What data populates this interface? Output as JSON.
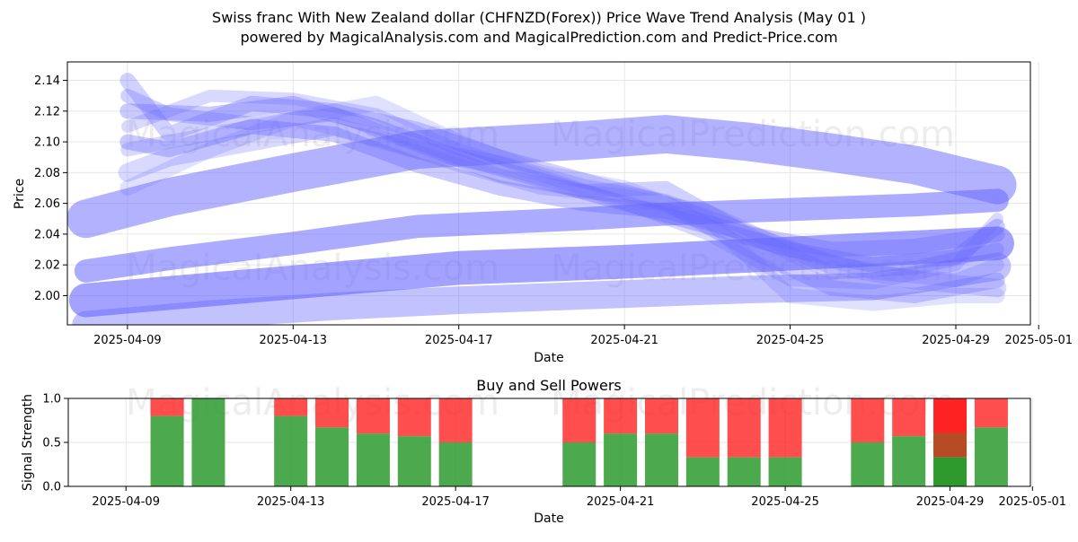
{
  "title_line1": "Swiss franc With New Zealand dollar (CHFNZD(Forex)) Price Wave Trend Analysis (May 01 )",
  "title_line2": "powered by MagicalAnalysis.com and MagicalPrediction.com and Predict-Price.com",
  "watermarks": [
    "MagicalAnalysis.com",
    "MagicalPrediction.com"
  ],
  "colors": {
    "wave": "#6666ff",
    "buy": "#2e9a2e",
    "sell": "#ff2222",
    "axis": "#000000",
    "grid": "#e6e6e6"
  },
  "chart_data": [
    {
      "type": "area",
      "title": "",
      "xlabel": "Date",
      "ylabel": "Price",
      "xlim": [
        "2025-04-08",
        "2025-05-01"
      ],
      "ylim": [
        1.981,
        2.152
      ],
      "x_ticks": [
        "2025-04-09",
        "2025-04-13",
        "2025-04-17",
        "2025-04-21",
        "2025-04-25",
        "2025-04-29",
        "2025-05-01"
      ],
      "y_ticks": [
        2.0,
        2.02,
        2.04,
        2.06,
        2.08,
        2.1,
        2.12,
        2.14
      ],
      "grid": true,
      "series": [
        {
          "dates": [
            "2025-04-08",
            "2025-04-10",
            "2025-04-13",
            "2025-04-16",
            "2025-04-20",
            "2025-04-22",
            "2025-04-24",
            "2025-04-26",
            "2025-04-28",
            "2025-04-30"
          ],
          "values": [
            2.05,
            2.064,
            2.08,
            2.095,
            2.101,
            2.105,
            2.1,
            2.093,
            2.085,
            2.072
          ],
          "width": 0.025,
          "opacity": 0.5
        },
        {
          "dates": [
            "2025-04-08",
            "2025-04-10",
            "2025-04-13",
            "2025-04-16",
            "2025-04-20",
            "2025-04-22",
            "2025-04-24",
            "2025-04-26",
            "2025-04-28",
            "2025-04-30"
          ],
          "values": [
            2.016,
            2.024,
            2.034,
            2.045,
            2.05,
            2.053,
            2.055,
            2.057,
            2.059,
            2.062
          ],
          "width": 0.015,
          "opacity": 0.55
        },
        {
          "dates": [
            "2025-04-08",
            "2025-04-11",
            "2025-04-14",
            "2025-04-17",
            "2025-04-21",
            "2025-04-24",
            "2025-04-27",
            "2025-04-30"
          ],
          "values": [
            1.997,
            2.004,
            2.011,
            2.018,
            2.022,
            2.026,
            2.03,
            2.034
          ],
          "width": 0.022,
          "opacity": 0.6
        },
        {
          "dates": [
            "2025-04-08",
            "2025-04-11",
            "2025-04-14",
            "2025-04-17",
            "2025-04-21",
            "2025-04-24",
            "2025-04-27",
            "2025-04-30"
          ],
          "values": [
            1.981,
            1.988,
            1.993,
            1.997,
            2.001,
            2.004,
            2.006,
            2.019
          ],
          "width": 0.018,
          "opacity": 0.4
        },
        {
          "dates": [
            "2025-04-09",
            "2025-04-10",
            "2025-04-12",
            "2025-04-14",
            "2025-04-16",
            "2025-04-18",
            "2025-04-20",
            "2025-04-22",
            "2025-04-24",
            "2025-04-26",
            "2025-04-28",
            "2025-04-30"
          ],
          "values": [
            2.1,
            2.095,
            2.11,
            2.105,
            2.085,
            2.07,
            2.06,
            2.055,
            2.04,
            2.03,
            2.032,
            2.04
          ],
          "width": 0.01,
          "opacity": 0.35
        },
        {
          "dates": [
            "2025-04-09",
            "2025-04-10",
            "2025-04-12",
            "2025-04-14",
            "2025-04-16",
            "2025-04-18",
            "2025-04-20",
            "2025-04-22",
            "2025-04-24",
            "2025-04-26",
            "2025-04-28",
            "2025-04-30"
          ],
          "values": [
            2.13,
            2.118,
            2.112,
            2.118,
            2.098,
            2.078,
            2.068,
            2.07,
            2.04,
            2.015,
            2.018,
            2.03
          ],
          "width": 0.009,
          "opacity": 0.3
        },
        {
          "dates": [
            "2025-04-09",
            "2025-04-10",
            "2025-04-12",
            "2025-04-14",
            "2025-04-16",
            "2025-04-18",
            "2025-04-20",
            "2025-04-22",
            "2025-04-24",
            "2025-04-26",
            "2025-04-28",
            "2025-04-30"
          ],
          "values": [
            2.14,
            2.105,
            2.125,
            2.12,
            2.108,
            2.09,
            2.075,
            2.06,
            2.03,
            2.005,
            2.0,
            2.01
          ],
          "width": 0.01,
          "opacity": 0.3
        },
        {
          "dates": [
            "2025-04-09",
            "2025-04-10",
            "2025-04-12",
            "2025-04-14",
            "2025-04-16",
            "2025-04-18",
            "2025-04-20",
            "2025-04-22",
            "2025-04-24",
            "2025-04-26",
            "2025-04-28",
            "2025-04-30"
          ],
          "values": [
            2.08,
            2.09,
            2.1,
            2.11,
            2.095,
            2.085,
            2.07,
            2.06,
            2.04,
            2.02,
            2.01,
            2.005
          ],
          "width": 0.012,
          "opacity": 0.25
        },
        {
          "dates": [
            "2025-04-09",
            "2025-04-11",
            "2025-04-13",
            "2025-04-15",
            "2025-04-17",
            "2025-04-19",
            "2025-04-21",
            "2025-04-23",
            "2025-04-25",
            "2025-04-27",
            "2025-04-29",
            "2025-04-30"
          ],
          "values": [
            2.12,
            2.118,
            2.125,
            2.11,
            2.09,
            2.075,
            2.06,
            2.045,
            2.03,
            2.02,
            2.025,
            2.045
          ],
          "width": 0.01,
          "opacity": 0.35
        },
        {
          "dates": [
            "2025-04-09",
            "2025-04-11",
            "2025-04-13",
            "2025-04-15",
            "2025-04-17",
            "2025-04-19",
            "2025-04-21",
            "2025-04-23",
            "2025-04-25",
            "2025-04-27",
            "2025-04-29",
            "2025-04-30"
          ],
          "values": [
            2.07,
            2.095,
            2.115,
            2.125,
            2.1,
            2.08,
            2.07,
            2.05,
            2.0,
            1.995,
            2.0,
            2.0
          ],
          "width": 0.01,
          "opacity": 0.2
        },
        {
          "dates": [
            "2025-04-09",
            "2025-04-11",
            "2025-04-13",
            "2025-04-15",
            "2025-04-17",
            "2025-04-19",
            "2025-04-21",
            "2025-04-23",
            "2025-04-25",
            "2025-04-27",
            "2025-04-29",
            "2025-04-30"
          ],
          "values": [
            2.11,
            2.13,
            2.128,
            2.118,
            2.095,
            2.078,
            2.06,
            2.04,
            2.01,
            2.008,
            2.02,
            2.05
          ],
          "width": 0.008,
          "opacity": 0.25
        },
        {
          "dates": [
            "2025-04-09",
            "2025-04-11",
            "2025-04-13",
            "2025-04-15",
            "2025-04-17",
            "2025-04-19",
            "2025-04-21",
            "2025-04-23",
            "2025-04-25",
            "2025-04-27",
            "2025-04-29",
            "2025-04-30"
          ],
          "values": [
            2.095,
            2.105,
            2.115,
            2.102,
            2.085,
            2.07,
            2.065,
            2.055,
            2.03,
            2.015,
            2.01,
            2.02
          ],
          "width": 0.009,
          "opacity": 0.25
        }
      ]
    },
    {
      "type": "bar",
      "title": "Buy and Sell Powers",
      "xlabel": "Date",
      "ylabel": "Signal Strength",
      "xlim": [
        "2025-04-08",
        "2025-05-01"
      ],
      "ylim": [
        0,
        1.0
      ],
      "x_ticks": [
        "2025-04-09",
        "2025-04-13",
        "2025-04-17",
        "2025-04-21",
        "2025-04-25",
        "2025-04-29",
        "2025-05-01"
      ],
      "y_ticks": [
        "0.0",
        "0.5",
        "1.0"
      ],
      "grid": true,
      "series": [
        {
          "name": "buy",
          "color": "#2e9a2e"
        },
        {
          "name": "sell",
          "color": "#ff2222"
        }
      ],
      "bars": [
        {
          "date": "2025-04-10",
          "buy": 0.8
        },
        {
          "date": "2025-04-11",
          "buy": 1.0
        },
        {
          "date": "2025-04-13",
          "buy": 0.8
        },
        {
          "date": "2025-04-14",
          "buy": 0.67
        },
        {
          "date": "2025-04-15",
          "buy": 0.6
        },
        {
          "date": "2025-04-16",
          "buy": 0.57
        },
        {
          "date": "2025-04-17",
          "buy": 0.5
        },
        {
          "date": "2025-04-20",
          "buy": 0.5
        },
        {
          "date": "2025-04-21",
          "buy": 0.6
        },
        {
          "date": "2025-04-22",
          "buy": 0.6
        },
        {
          "date": "2025-04-23",
          "buy": 0.33
        },
        {
          "date": "2025-04-24",
          "buy": 0.33
        },
        {
          "date": "2025-04-25",
          "buy": 0.33
        },
        {
          "date": "2025-04-27",
          "buy": 0.5
        },
        {
          "date": "2025-04-28",
          "buy": 0.57
        },
        {
          "date": "2025-04-29",
          "buy": 0.33,
          "highlight": true
        },
        {
          "date": "2025-04-30",
          "buy": 0.67
        }
      ]
    }
  ]
}
